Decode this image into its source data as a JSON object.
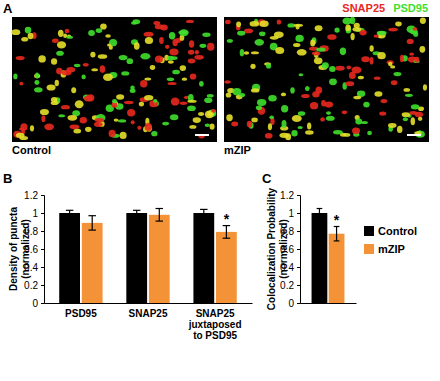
{
  "figure": {
    "panel_labels": [
      "A",
      "B",
      "C"
    ],
    "image": {
      "channels": [
        {
          "name": "SNAP25",
          "color": "#e8281e"
        },
        {
          "name": "PSD95",
          "color": "#3fe02c"
        }
      ],
      "conditions": [
        "Control",
        "mZIP"
      ]
    }
  },
  "chart_data": [
    {
      "type": "bar",
      "y_label": [
        "Density of puncta",
        "(normalized)"
      ],
      "categories": [
        "PSD95",
        "SNAP25",
        "SNAP25 juxtaposed to PSD95"
      ],
      "series": [
        {
          "name": "Control",
          "color": "#000000",
          "values": [
            1,
            1,
            1
          ],
          "errors": [
            0.03,
            0.03,
            0.04
          ],
          "significance": [
            null,
            null,
            null
          ]
        },
        {
          "name": "mZIP",
          "color": "#f39237",
          "values": [
            0.89,
            0.98,
            0.79
          ],
          "errors": [
            0.08,
            0.07,
            0.07
          ],
          "significance": [
            null,
            null,
            "*"
          ]
        }
      ],
      "ylim": [
        0,
        1.2
      ],
      "yticks": [
        0,
        0.2,
        0.4,
        0.6,
        0.8,
        1,
        1.2
      ],
      "grid": false
    },
    {
      "type": "bar",
      "y_label": [
        "Colocalization Probability",
        "(normalized)"
      ],
      "categories": [
        null
      ],
      "series": [
        {
          "name": "Control",
          "color": "#000000",
          "values": [
            1
          ],
          "errors": [
            0.05
          ],
          "significance": [
            null
          ]
        },
        {
          "name": "mZIP",
          "color": "#f39237",
          "values": [
            0.77
          ],
          "errors": [
            0.08
          ],
          "significance": [
            "*"
          ]
        }
      ],
      "ylim": [
        0,
        1.2
      ],
      "yticks": [
        0,
        0.2,
        0.4,
        0.6,
        0.8,
        1,
        1.2
      ],
      "grid": false,
      "legend": "right"
    }
  ]
}
